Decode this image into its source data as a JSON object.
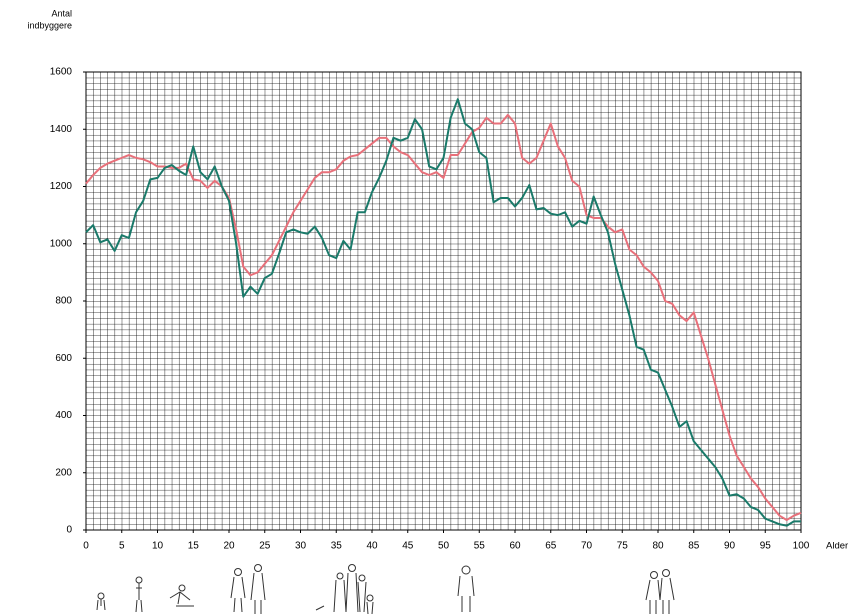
{
  "chart_data": {
    "type": "line",
    "ylabel": [
      "Antal",
      "indbyggere"
    ],
    "xlabel": "Alder",
    "x": [
      0,
      1,
      2,
      3,
      4,
      5,
      6,
      7,
      8,
      9,
      10,
      11,
      12,
      13,
      14,
      15,
      16,
      17,
      18,
      19,
      20,
      21,
      22,
      23,
      24,
      25,
      26,
      27,
      28,
      29,
      30,
      31,
      32,
      33,
      34,
      35,
      36,
      37,
      38,
      39,
      40,
      41,
      42,
      43,
      44,
      45,
      46,
      47,
      48,
      49,
      50,
      51,
      52,
      53,
      54,
      55,
      56,
      57,
      58,
      59,
      60,
      61,
      62,
      63,
      64,
      65,
      66,
      67,
      68,
      69,
      70,
      71,
      72,
      73,
      74,
      75,
      76,
      77,
      78,
      79,
      80,
      81,
      82,
      83,
      84,
      85,
      86,
      87,
      88,
      89,
      90,
      91,
      92,
      93,
      94,
      95,
      96,
      97,
      98,
      99,
      100
    ],
    "series": [
      {
        "color": "#e8707a",
        "values": [
          1210,
          1240,
          1265,
          1280,
          1290,
          1300,
          1310,
          1300,
          1295,
          1285,
          1270,
          1270,
          1265,
          1265,
          1280,
          1225,
          1220,
          1195,
          1220,
          1200,
          1160,
          1050,
          920,
          890,
          900,
          930,
          960,
          1010,
          1060,
          1110,
          1150,
          1190,
          1230,
          1250,
          1250,
          1260,
          1290,
          1305,
          1310,
          1330,
          1350,
          1370,
          1370,
          1340,
          1320,
          1310,
          1280,
          1250,
          1240,
          1250,
          1230,
          1310,
          1310,
          1350,
          1390,
          1405,
          1440,
          1420,
          1420,
          1450,
          1420,
          1300,
          1280,
          1300,
          1360,
          1420,
          1340,
          1300,
          1220,
          1200,
          1100,
          1090,
          1090,
          1060,
          1040,
          1050,
          980,
          960,
          920,
          900,
          870,
          800,
          790,
          750,
          730,
          760,
          680,
          600,
          510,
          420,
          330,
          260,
          220,
          180,
          150,
          110,
          80,
          50,
          35,
          50,
          60
        ]
      },
      {
        "color": "#1a7a6a",
        "values": [
          1040,
          1065,
          1005,
          1015,
          975,
          1030,
          1020,
          1110,
          1150,
          1225,
          1230,
          1265,
          1275,
          1255,
          1240,
          1340,
          1250,
          1225,
          1270,
          1200,
          1150,
          1000,
          815,
          850,
          825,
          880,
          895,
          965,
          1040,
          1050,
          1040,
          1035,
          1060,
          1020,
          960,
          950,
          1010,
          980,
          1110,
          1110,
          1180,
          1230,
          1290,
          1370,
          1360,
          1370,
          1435,
          1400,
          1270,
          1260,
          1300,
          1440,
          1505,
          1420,
          1400,
          1320,
          1300,
          1145,
          1160,
          1160,
          1130,
          1160,
          1205,
          1120,
          1125,
          1105,
          1100,
          1110,
          1060,
          1080,
          1070,
          1165,
          1100,
          1040,
          930,
          840,
          750,
          640,
          630,
          560,
          550,
          490,
          430,
          360,
          380,
          310,
          280,
          250,
          220,
          180,
          120,
          125,
          110,
          80,
          70,
          40,
          30,
          20,
          15,
          30,
          30
        ]
      }
    ],
    "xlim": [
      0,
      100
    ],
    "xticks": [
      0,
      5,
      10,
      15,
      20,
      25,
      30,
      35,
      40,
      45,
      50,
      55,
      60,
      65,
      70,
      75,
      80,
      85,
      90,
      95,
      100
    ],
    "ylim": [
      0,
      1600
    ],
    "yticks": [
      0,
      200,
      400,
      600,
      800,
      1000,
      1200,
      1400,
      1600
    ],
    "grid": true
  }
}
